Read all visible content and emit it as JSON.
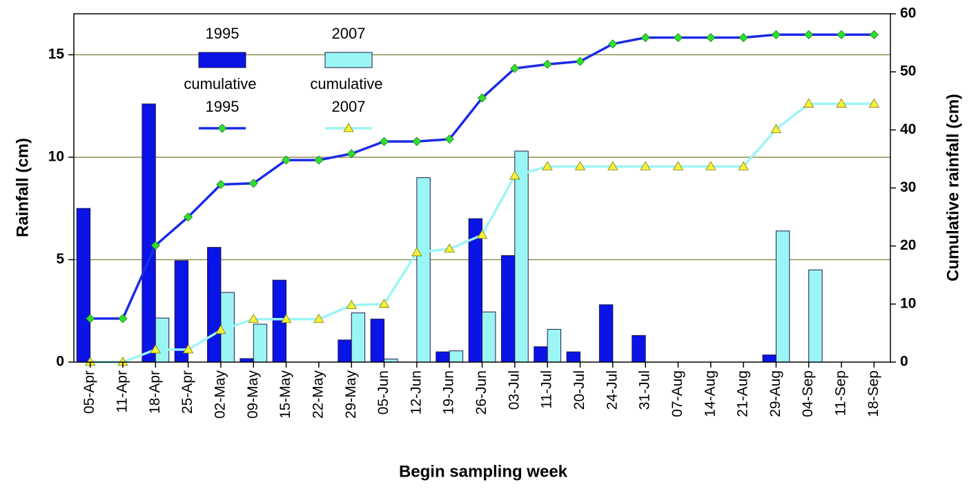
{
  "chart_data": {
    "type": "bar-line",
    "xlabel": "Begin sampling week",
    "ylabel": "Rainfall (cm)",
    "y2label": "Cumulative rainfall (cm)",
    "categories": [
      "05-Apr",
      "11-Apr",
      "18-Apr",
      "25-Apr",
      "02-May",
      "09-May",
      "15-May",
      "22-May",
      "29-May",
      "05-Jun",
      "12-Jun",
      "19-Jun",
      "26-Jun",
      "03-Jul",
      "11-Jul",
      "20-Jul",
      "24-Jul",
      "31-Jul",
      "07-Aug",
      "14-Aug",
      "21-Aug",
      "29-Aug",
      "04-Sep",
      "11-Sep",
      "18-Sep"
    ],
    "series": [
      {
        "name": "1995",
        "type": "bar",
        "color": "#0a14e6",
        "values": [
          7.5,
          0,
          12.6,
          4.95,
          5.6,
          0.17,
          4.0,
          0,
          1.08,
          2.1,
          0,
          0.5,
          7.0,
          5.2,
          0.75,
          0.5,
          2.8,
          1.3,
          0,
          0,
          0,
          0.35,
          0,
          0,
          0
        ]
      },
      {
        "name": "2007",
        "type": "bar",
        "color": "#9cf5f5",
        "values": [
          0,
          0,
          2.15,
          0,
          3.4,
          1.85,
          0,
          0,
          2.4,
          0.15,
          9.0,
          0.55,
          2.45,
          10.3,
          1.6,
          0,
          0,
          0,
          0,
          0,
          0,
          6.4,
          4.5,
          0,
          0
        ]
      },
      {
        "name": "cumulative 1995",
        "type": "line",
        "axis": "y2",
        "color": "#1a2ae6",
        "marker": "diamond",
        "marker_color": "#2ee02e",
        "values": [
          7.5,
          7.5,
          20.1,
          25,
          30.6,
          30.8,
          34.8,
          34.8,
          35.9,
          38,
          38,
          38.4,
          45.5,
          50.6,
          51.3,
          51.8,
          54.8,
          55.9,
          55.9,
          55.9,
          55.9,
          56.4,
          56.4,
          56.4,
          56.4
        ]
      },
      {
        "name": "cumulative 2007",
        "type": "line",
        "axis": "y2",
        "color": "#9cf5f5",
        "marker": "triangle",
        "marker_color": "#f5f03a",
        "values": [
          0,
          0,
          2.15,
          2.15,
          5.5,
          7.4,
          7.4,
          7.4,
          9.8,
          10,
          18.9,
          19.5,
          21.9,
          32.1,
          33.7,
          33.7,
          33.7,
          33.7,
          33.7,
          33.7,
          33.7,
          40.1,
          44.5,
          44.5,
          44.5
        ]
      }
    ],
    "ylim": [
      0,
      17
    ],
    "yticks": [
      0,
      5,
      10,
      15
    ],
    "y2lim": [
      0,
      60
    ],
    "y2ticks": [
      0,
      10,
      20,
      30,
      40,
      50,
      60
    ],
    "grid": true,
    "grid_color": "#8a8f52"
  }
}
